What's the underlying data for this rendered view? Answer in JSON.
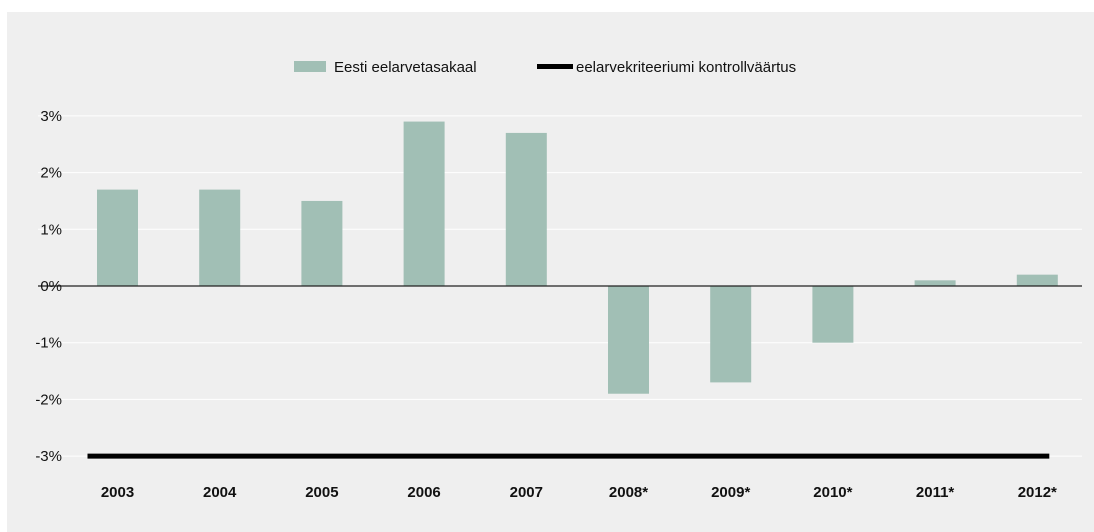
{
  "chart_data": {
    "type": "bar",
    "title": "",
    "xlabel": "",
    "ylabel": "",
    "categories": [
      "2003",
      "2004",
      "2005",
      "2006",
      "2007",
      "2008*",
      "2009*",
      "2010*",
      "2011*",
      "2012*"
    ],
    "series": [
      {
        "name": "Eesti eelarvetasakaal",
        "type": "bar",
        "color": "#a1bfb5",
        "values": [
          1.7,
          1.7,
          1.5,
          2.9,
          2.7,
          -1.9,
          -1.7,
          -1.0,
          0.1,
          0.2
        ]
      },
      {
        "name": "eelarvekriteeriumi kontrollväärtus",
        "type": "line",
        "color": "#000000",
        "values": [
          -3,
          -3,
          -3,
          -3,
          -3,
          -3,
          -3,
          -3,
          -3,
          -3
        ]
      }
    ],
    "ylim": [
      -3,
      3
    ],
    "yticks": [
      3,
      2,
      1,
      0,
      -1,
      -2,
      -3
    ],
    "ytick_labels": [
      "3%",
      "2%",
      "1%",
      "0%",
      "-1%",
      "-2%",
      "-3%"
    ],
    "grid": true,
    "legend_position": "top-center"
  }
}
